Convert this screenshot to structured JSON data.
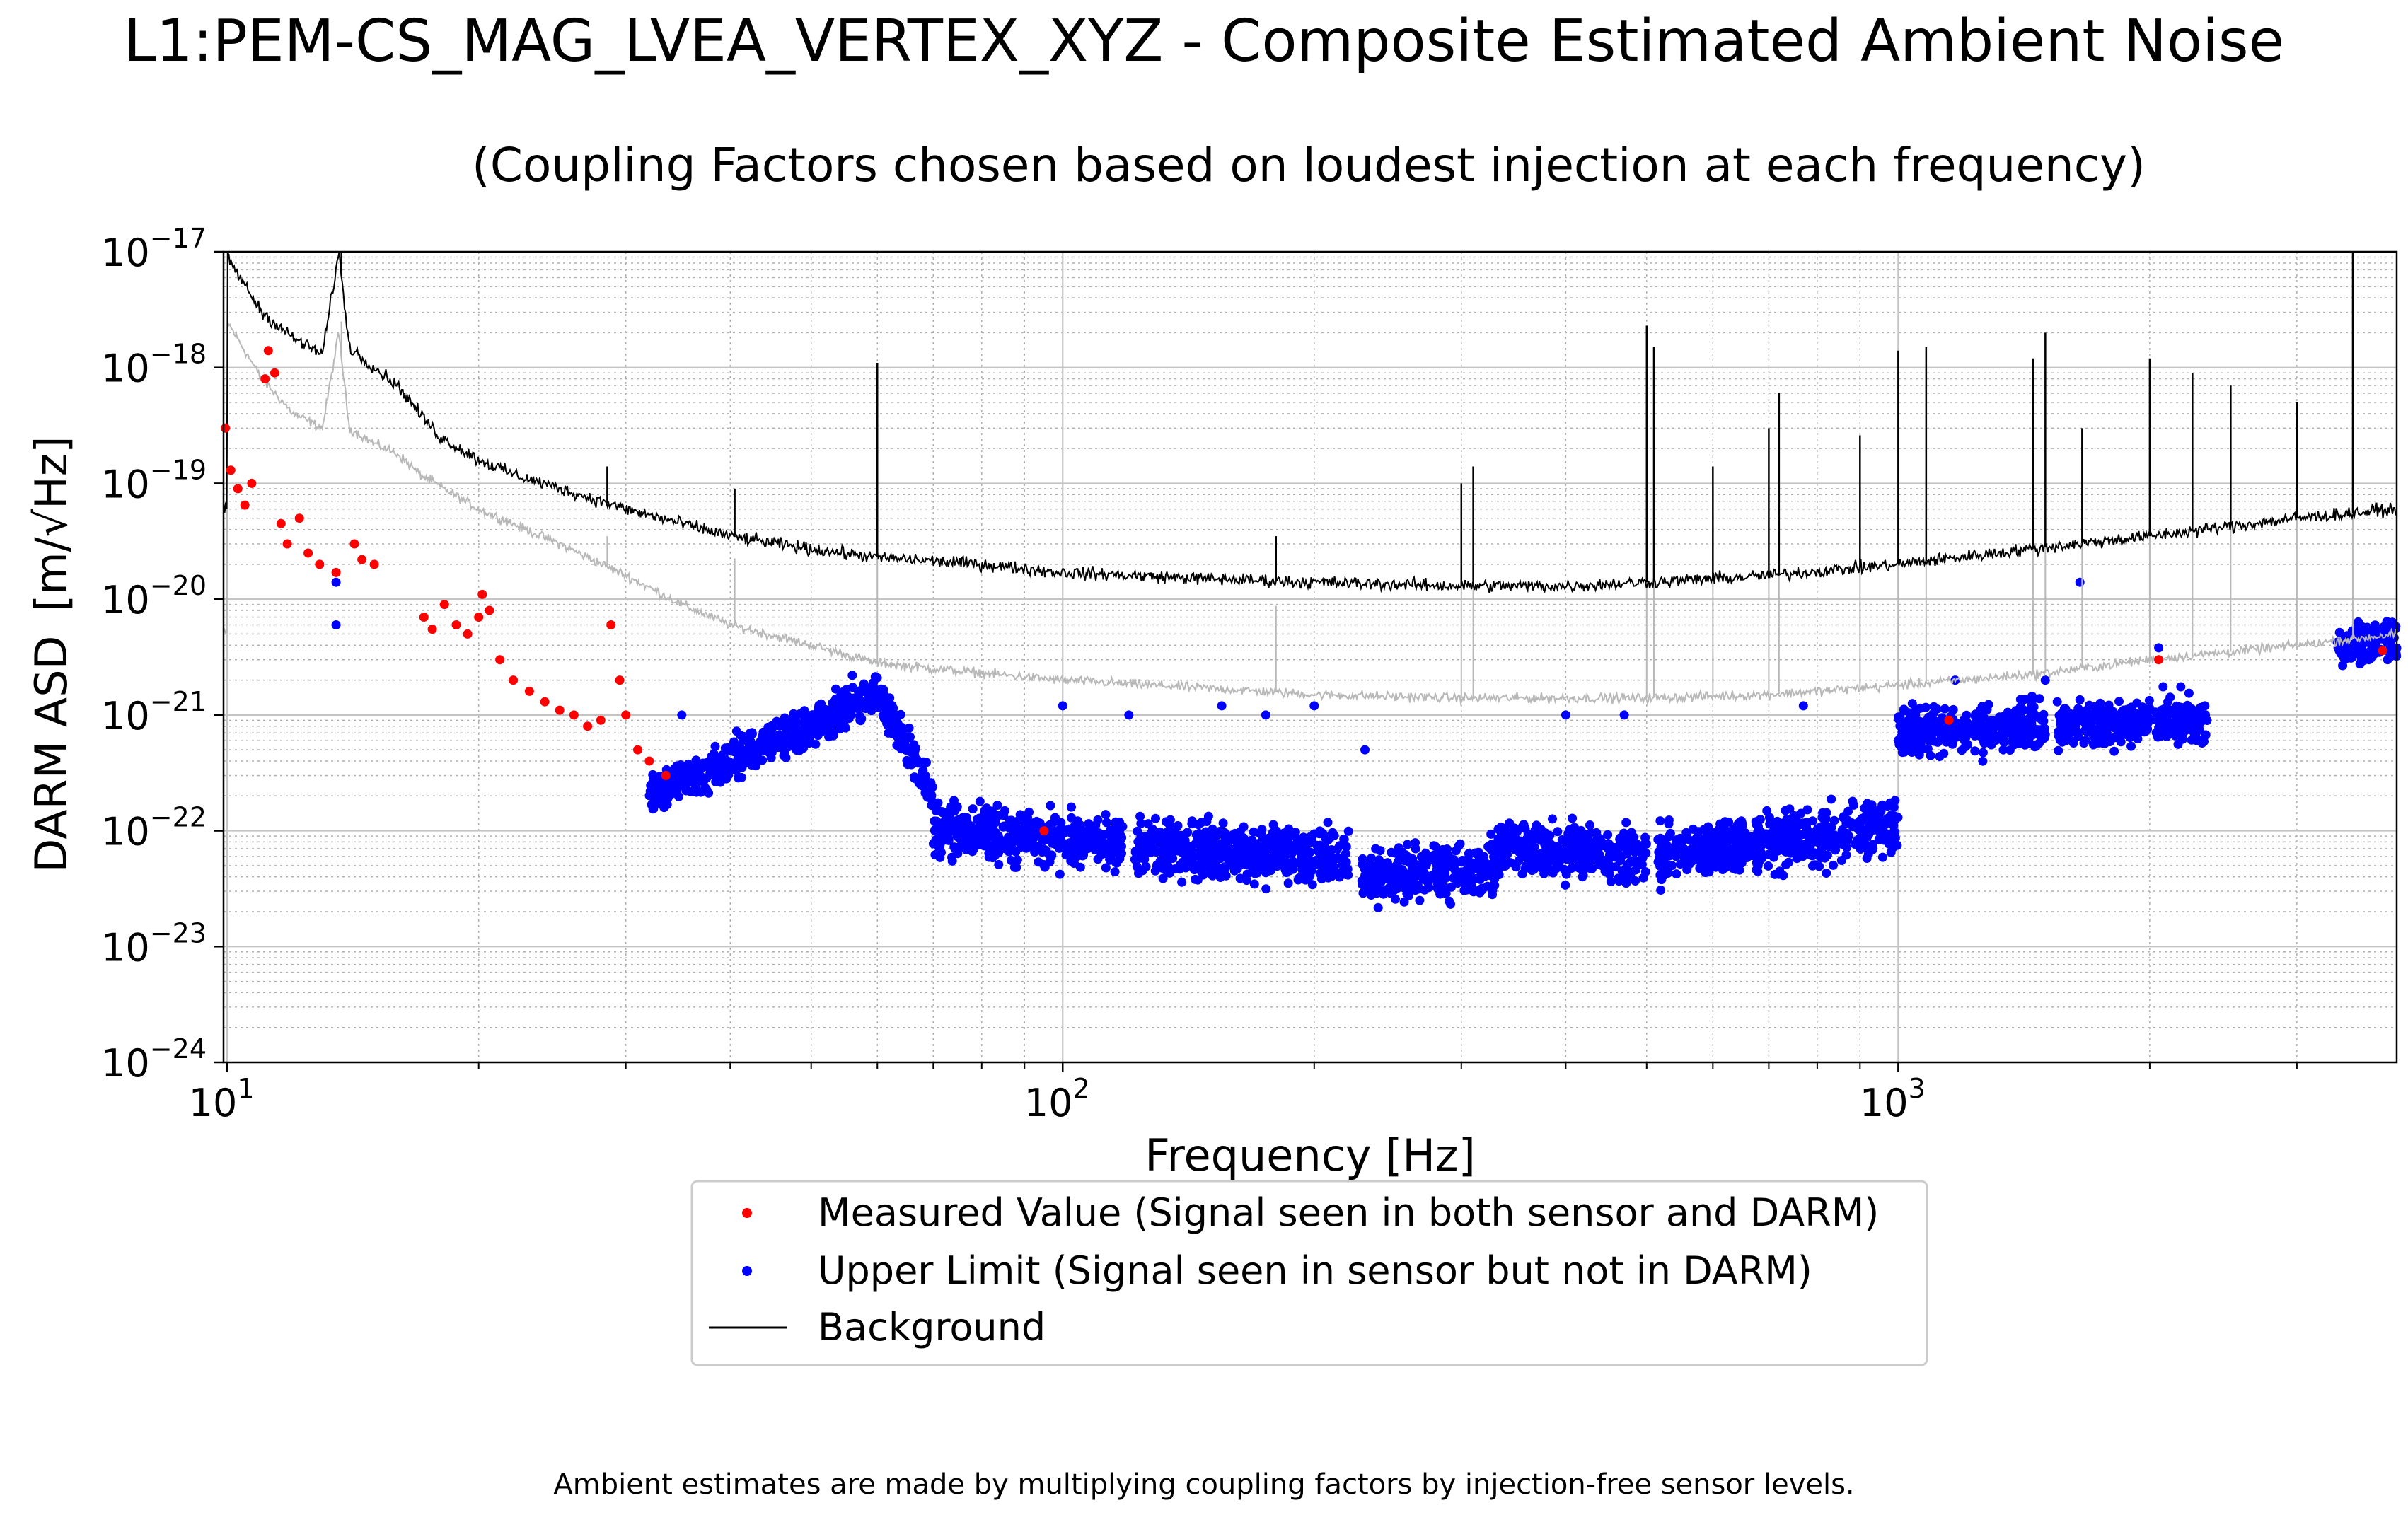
{
  "chart_data": {
    "type": "scatter",
    "title": "L1:PEM-CS_MAG_LVEA_VERTEX_XYZ - Composite Estimated Ambient Noise",
    "subtitle": "(Coupling Factors chosen based on loudest injection at each frequency)",
    "xlabel": "Frequency [Hz]",
    "ylabel_prefix": "DARM ASD",
    "ylabel_unit": "[m/√Hz]",
    "x_scale": "log",
    "y_scale": "log",
    "xlim": [
      9.9,
      3950
    ],
    "ylim": [
      1e-24,
      1e-17
    ],
    "x_ticks": [
      {
        "value": 10,
        "base": "10",
        "exp": "1"
      },
      {
        "value": 100,
        "base": "10",
        "exp": "2"
      },
      {
        "value": 1000,
        "base": "10",
        "exp": "3"
      }
    ],
    "y_ticks": [
      {
        "value": 1e-17,
        "base": "10",
        "exp": "−17"
      },
      {
        "value": 1e-18,
        "base": "10",
        "exp": "−18"
      },
      {
        "value": 1e-19,
        "base": "10",
        "exp": "−19"
      },
      {
        "value": 1e-20,
        "base": "10",
        "exp": "−20"
      },
      {
        "value": 1e-21,
        "base": "10",
        "exp": "−21"
      },
      {
        "value": 1e-22,
        "base": "10",
        "exp": "−22"
      },
      {
        "value": 1e-23,
        "base": "10",
        "exp": "−23"
      },
      {
        "value": 1e-24,
        "base": "10",
        "exp": "−24"
      }
    ],
    "grid": true,
    "legend_position": "below-center",
    "legend": [
      {
        "label": "Measured Value (Signal seen in both sensor and DARM)",
        "marker": "dot",
        "color": "#ff0000"
      },
      {
        "label": "Upper Limit (Signal seen in sensor but not in DARM)",
        "marker": "dot",
        "color": "#0000ff"
      },
      {
        "label": "Background",
        "marker": "line",
        "color": "#000000"
      }
    ],
    "series": [
      {
        "name": "Background",
        "kind": "line",
        "color": "#000000",
        "points": [
          [
            10,
            9e-18
          ],
          [
            11,
            3e-18
          ],
          [
            12,
            1.8e-18
          ],
          [
            13,
            1.3e-18
          ],
          [
            13.6,
            1e-17
          ],
          [
            14,
            1.5e-18
          ],
          [
            15,
            1e-18
          ],
          [
            16,
            7e-19
          ],
          [
            17,
            4e-19
          ],
          [
            18,
            2.5e-19
          ],
          [
            20,
            1.6e-19
          ],
          [
            22,
            1.2e-19
          ],
          [
            25,
            9e-20
          ],
          [
            30,
            6e-20
          ],
          [
            35,
            4.5e-20
          ],
          [
            40,
            3.5e-20
          ],
          [
            50,
            2.7e-20
          ],
          [
            60,
            2.3e-20
          ],
          [
            80,
            2e-20
          ],
          [
            100,
            1.7e-20
          ],
          [
            150,
            1.5e-20
          ],
          [
            200,
            1.4e-20
          ],
          [
            300,
            1.3e-20
          ],
          [
            400,
            1.3e-20
          ],
          [
            500,
            1.4e-20
          ],
          [
            700,
            1.6e-20
          ],
          [
            1000,
            2e-20
          ],
          [
            1500,
            2.8e-20
          ],
          [
            2000,
            3.5e-20
          ],
          [
            3000,
            5e-20
          ],
          [
            3950,
            6e-20
          ]
        ],
        "lines": [
          {
            "x": 13.7,
            "y": 1e-17
          },
          {
            "x": 16.3,
            "y": 6e-19
          },
          {
            "x": 28.5,
            "y": 1.4e-19
          },
          {
            "x": 40.5,
            "y": 9e-20
          },
          {
            "x": 60,
            "y": 1.1e-18
          },
          {
            "x": 180,
            "y": 3.5e-20
          },
          {
            "x": 300,
            "y": 1e-19
          },
          {
            "x": 310,
            "y": 1.4e-19
          },
          {
            "x": 500,
            "y": 2.3e-18
          },
          {
            "x": 510,
            "y": 1.5e-18
          },
          {
            "x": 600,
            "y": 1.4e-19
          },
          {
            "x": 700,
            "y": 3e-19
          },
          {
            "x": 720,
            "y": 6e-19
          },
          {
            "x": 900,
            "y": 2.6e-19
          },
          {
            "x": 1000,
            "y": 1.4e-18
          },
          {
            "x": 1080,
            "y": 1.5e-18
          },
          {
            "x": 1450,
            "y": 1.2e-18
          },
          {
            "x": 1500,
            "y": 2e-18
          },
          {
            "x": 1660,
            "y": 3e-19
          },
          {
            "x": 2000,
            "y": 1.2e-18
          },
          {
            "x": 2250,
            "y": 9e-19
          },
          {
            "x": 2500,
            "y": 7e-19
          },
          {
            "x": 3000,
            "y": 5e-19
          },
          {
            "x": 3500,
            "y": 1e-17
          }
        ]
      },
      {
        "name": "",
        "kind": "line",
        "color": "#b8b8b8",
        "points": [
          [
            10,
            2.5e-18
          ],
          [
            11,
            8e-19
          ],
          [
            12,
            4e-19
          ],
          [
            13,
            3e-19
          ],
          [
            13.6,
            2e-18
          ],
          [
            14,
            3e-19
          ],
          [
            15,
            2.2e-19
          ],
          [
            16,
            1.8e-19
          ],
          [
            17,
            1.2e-19
          ],
          [
            20,
            6e-20
          ],
          [
            25,
            3e-20
          ],
          [
            30,
            1.6e-20
          ],
          [
            35,
            9e-21
          ],
          [
            40,
            6e-21
          ],
          [
            50,
            4e-21
          ],
          [
            60,
            2.8e-21
          ],
          [
            80,
            2.3e-21
          ],
          [
            100,
            2e-21
          ],
          [
            150,
            1.7e-21
          ],
          [
            200,
            1.5e-21
          ],
          [
            300,
            1.4e-21
          ],
          [
            500,
            1.4e-21
          ],
          [
            700,
            1.5e-21
          ],
          [
            1000,
            1.8e-21
          ],
          [
            1500,
            2.3e-21
          ],
          [
            2000,
            3e-21
          ],
          [
            3000,
            4e-21
          ],
          [
            3950,
            5e-21
          ]
        ]
      },
      {
        "name": "Measured Value (Signal seen in both sensor and DARM)",
        "kind": "points",
        "color": "#ff0000",
        "points": [
          [
            9.95,
            3e-19
          ],
          [
            10.1,
            1.3e-19
          ],
          [
            10.3,
            9e-20
          ],
          [
            10.5,
            6.5e-20
          ],
          [
            10.7,
            1e-19
          ],
          [
            11.1,
            8e-19
          ],
          [
            11.2,
            1.4e-18
          ],
          [
            11.4,
            9e-19
          ],
          [
            11.6,
            4.5e-20
          ],
          [
            11.8,
            3e-20
          ],
          [
            12.2,
            5e-20
          ],
          [
            12.5,
            2.5e-20
          ],
          [
            12.9,
            2e-20
          ],
          [
            13.5,
            1.7e-20
          ],
          [
            14.2,
            3e-20
          ],
          [
            14.5,
            2.2e-20
          ],
          [
            15,
            2e-20
          ],
          [
            17.2,
            7e-21
          ],
          [
            17.6,
            5.5e-21
          ],
          [
            18.2,
            9e-21
          ],
          [
            18.8,
            6e-21
          ],
          [
            19.4,
            5e-21
          ],
          [
            20,
            7e-21
          ],
          [
            20.2,
            1.1e-20
          ],
          [
            20.6,
            8e-21
          ],
          [
            21.2,
            3e-21
          ],
          [
            22,
            2e-21
          ],
          [
            23,
            1.6e-21
          ],
          [
            24,
            1.3e-21
          ],
          [
            25,
            1.1e-21
          ],
          [
            26,
            1e-21
          ],
          [
            27,
            8e-22
          ],
          [
            28,
            9e-22
          ],
          [
            28.8,
            6e-21
          ],
          [
            29.5,
            2e-21
          ],
          [
            30,
            1e-21
          ],
          [
            31,
            5e-22
          ],
          [
            32,
            4e-22
          ],
          [
            33.5,
            3e-22
          ],
          [
            95,
            1e-22
          ],
          [
            1150,
            9e-22
          ],
          [
            2050,
            3e-21
          ],
          [
            3800,
            3.6e-21
          ]
        ]
      },
      {
        "name": "Upper Limit (Signal seen in sensor but not in DARM)",
        "kind": "bands",
        "color": "#0000ff",
        "bands": [
          {
            "x0": 32,
            "x1": 60,
            "y_start": 2e-22,
            "y_end": 1.5e-21,
            "spread": 0.25
          },
          {
            "x0": 60,
            "x1": 70,
            "y_start": 1.5e-21,
            "y_end": 2e-22,
            "spread": 0.25
          },
          {
            "x0": 70,
            "x1": 118,
            "y_start": 1e-22,
            "y_end": 8e-23,
            "spread": 0.35
          },
          {
            "x0": 122,
            "x1": 220,
            "y_start": 7e-23,
            "y_end": 6e-23,
            "spread": 0.35
          },
          {
            "x0": 228,
            "x1": 330,
            "y_start": 4e-23,
            "y_end": 5e-23,
            "spread": 0.35
          },
          {
            "x0": 332,
            "x1": 500,
            "y_start": 7e-23,
            "y_end": 6e-23,
            "spread": 0.35
          },
          {
            "x0": 515,
            "x1": 1000,
            "y_start": 6e-23,
            "y_end": 1.1e-22,
            "spread": 0.35
          },
          {
            "x0": 1000,
            "x1": 1500,
            "y_start": 7e-22,
            "y_end": 8e-22,
            "spread": 0.3
          },
          {
            "x0": 1550,
            "x1": 2000,
            "y_start": 8e-22,
            "y_end": 9e-22,
            "spread": 0.3
          },
          {
            "x0": 2030,
            "x1": 2350,
            "y_start": 9e-22,
            "y_end": 9e-22,
            "spread": 0.3
          },
          {
            "x0": 3350,
            "x1": 3950,
            "y_start": 4e-21,
            "y_end": 4.5e-21,
            "spread": 0.25
          }
        ],
        "points": [
          [
            13.5,
            1.4e-20
          ],
          [
            13.5,
            6e-21
          ],
          [
            35,
            1e-21
          ],
          [
            56,
            2.2e-21
          ],
          [
            100,
            1.2e-21
          ],
          [
            120,
            1e-21
          ],
          [
            155,
            1.2e-21
          ],
          [
            175,
            1e-21
          ],
          [
            200,
            1.2e-21
          ],
          [
            230,
            5e-22
          ],
          [
            400,
            1e-21
          ],
          [
            470,
            1e-21
          ],
          [
            770,
            1.2e-21
          ],
          [
            1170,
            2e-21
          ],
          [
            1500,
            2e-21
          ],
          [
            1550,
            1.3e-21
          ],
          [
            1650,
            1.4e-20
          ],
          [
            2050,
            3.8e-21
          ]
        ]
      }
    ]
  },
  "footnote": "Ambient estimates are made by multiplying coupling factors by injection-free sensor levels."
}
